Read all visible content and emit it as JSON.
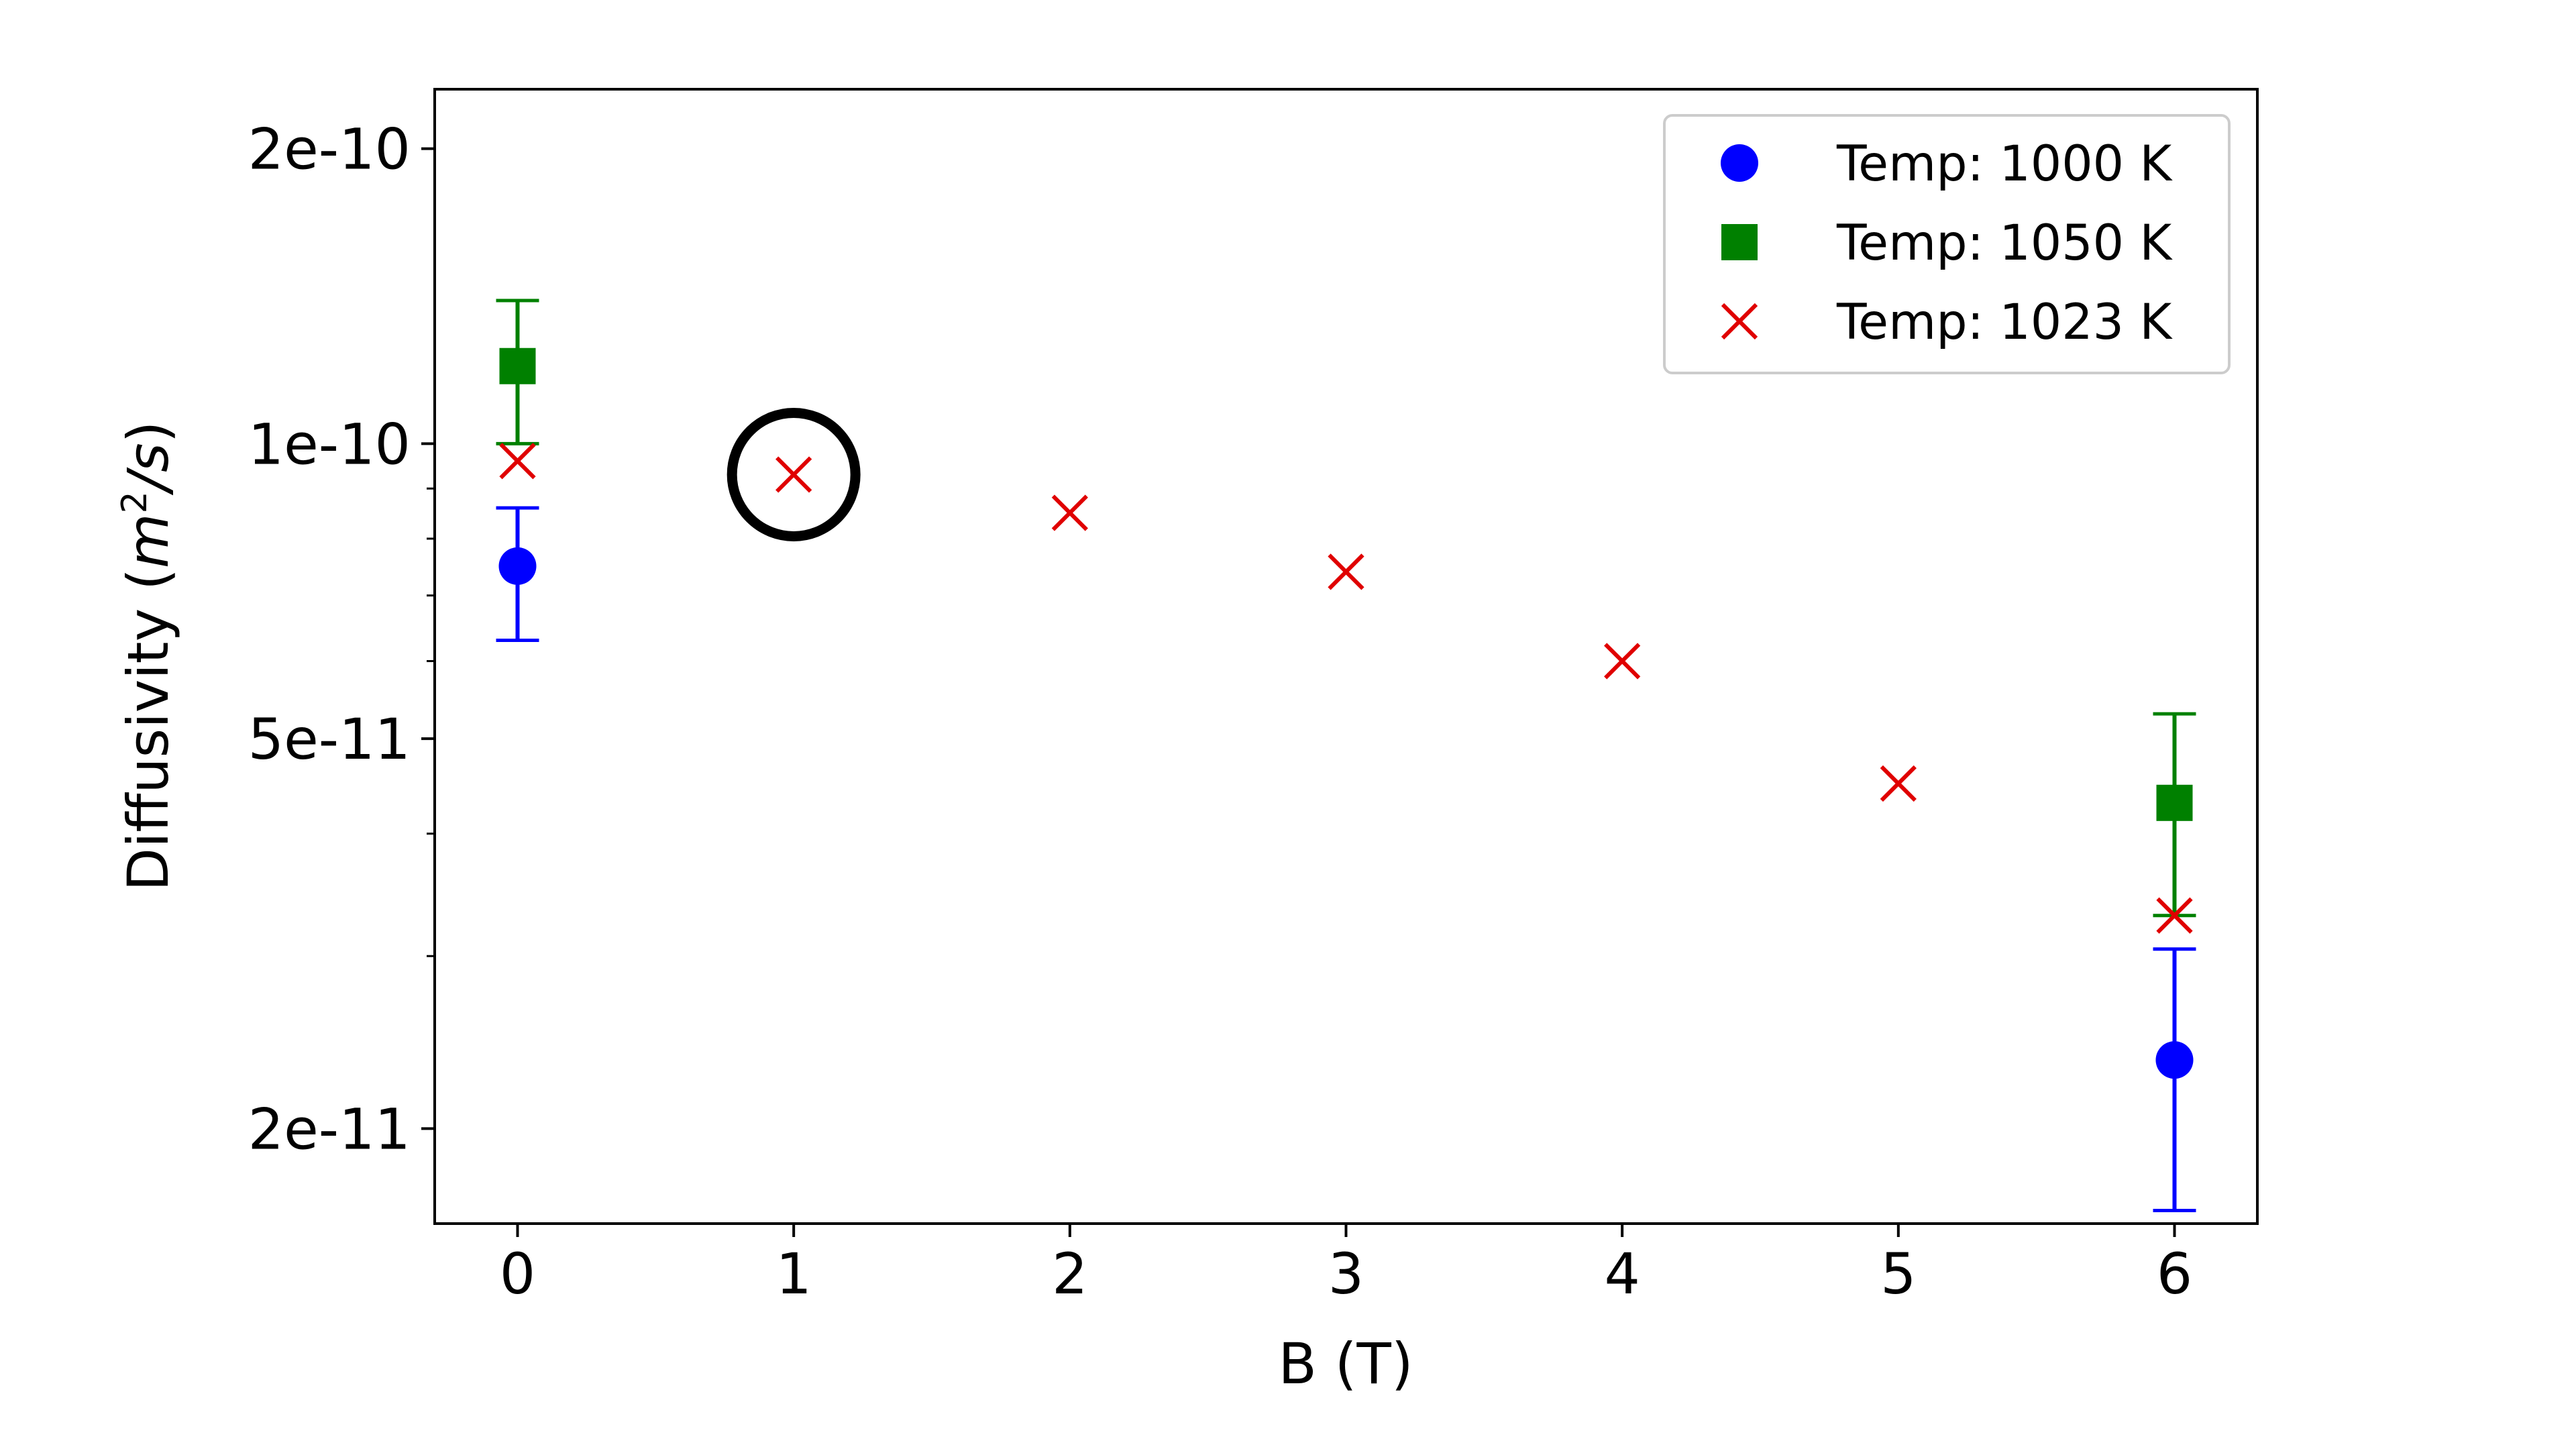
{
  "chart_data": {
    "type": "scatter",
    "xlabel": "B (T)",
    "ylabel": {
      "prefix": "Diffusivity (",
      "m": "m",
      "sup": "2",
      "rest": "/s",
      "suffix": ")"
    },
    "xlim": [
      -0.3,
      6.3
    ],
    "ylim": [
      1.6e-11,
      2.3e-10
    ],
    "yscale": "log",
    "grid": false,
    "legend_position": "top-right",
    "x_ticks": [
      0,
      1,
      2,
      3,
      4,
      5,
      6
    ],
    "y_ticks": [
      {
        "value": 2e-11,
        "label": "2e-11"
      },
      {
        "value": 5e-11,
        "label": "5e-11"
      },
      {
        "value": 1e-10,
        "label": "1e-10"
      },
      {
        "value": 2e-10,
        "label": "2e-10"
      }
    ],
    "y_minor_ticks": [
      3e-11,
      4e-11,
      6e-11,
      7e-11,
      8e-11,
      9e-11
    ],
    "series": [
      {
        "name": "Temp: 1000 K",
        "marker": "circle",
        "color": "#0000ff",
        "points": [
          {
            "x": 0,
            "y": 7.5e-11,
            "err_low": 6.3e-11,
            "err_high": 8.6e-11
          },
          {
            "x": 6,
            "y": 2.35e-11,
            "err_low": 1.65e-11,
            "err_high": 3.05e-11
          }
        ]
      },
      {
        "name": "Temp: 1050 K",
        "marker": "square",
        "color": "#008000",
        "points": [
          {
            "x": 0,
            "y": 1.2e-10,
            "err_low": 1e-10,
            "err_high": 1.4e-10
          },
          {
            "x": 6,
            "y": 4.3e-11,
            "err_low": 3.3e-11,
            "err_high": 5.3e-11
          }
        ]
      },
      {
        "name": "Temp: 1023 K",
        "marker": "x",
        "color": "#e00000",
        "points": [
          {
            "x": 0,
            "y": 9.6e-11
          },
          {
            "x": 1,
            "y": 9.3e-11
          },
          {
            "x": 2,
            "y": 8.5e-11
          },
          {
            "x": 3,
            "y": 7.4e-11
          },
          {
            "x": 4,
            "y": 6e-11
          },
          {
            "x": 5,
            "y": 4.5e-11
          },
          {
            "x": 6,
            "y": 3.3e-11
          }
        ]
      }
    ],
    "annotations": [
      {
        "type": "circle-highlight",
        "x": 1,
        "y": 9.3e-11,
        "color": "#000000"
      }
    ]
  }
}
